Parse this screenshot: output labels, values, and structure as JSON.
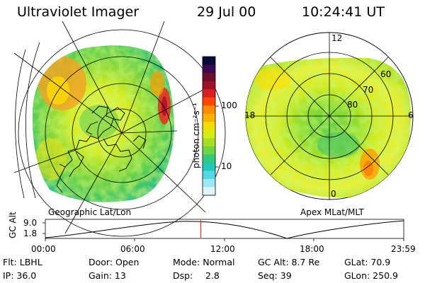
{
  "header": {
    "instrument": "Ultraviolet Imager",
    "date": "29 Jul 00",
    "time": "10:24:41 UT"
  },
  "left_panel": {
    "caption": "Geographic Lat/Lon"
  },
  "right_panel": {
    "caption": "Apex MLat/MLT",
    "mlt_labels": [
      "12",
      "18",
      "6",
      "0"
    ],
    "lat_labels": [
      "60",
      "70",
      "80"
    ]
  },
  "colorbar": {
    "unit_label": "photon cm⁻²s⁻¹",
    "tick_labels": [
      "100",
      "10"
    ],
    "colors": [
      "#0a0a3a",
      "#3b0a52",
      "#6a0f2a",
      "#a0122a",
      "#d81f22",
      "#ff4500",
      "#ff8c00",
      "#ffb000",
      "#f4dc00",
      "#d7ec14",
      "#a8de22",
      "#6fd442",
      "#34c87e",
      "#22c8b6",
      "#55d8e6",
      "#9ce8f2",
      "#e2f4f8"
    ]
  },
  "altitude_plot": {
    "ylabel": "GC Alt",
    "yticks": [
      "9.0",
      "1.8"
    ],
    "xticks": [
      "00:00",
      "06:00",
      "12:00",
      "18:00",
      "23:59"
    ],
    "current_time_marker_hours": 10.41
  },
  "info": {
    "filter": "Flt: LBHL",
    "door": "Door: Open",
    "mode": "Mode: Normal",
    "gc_alt": "GC Alt: 8.7 Re",
    "glat": "GLat:  70.9",
    "ip": "IP: 36.0",
    "gain": "Gain: 13",
    "dsp_label": "Dsp:",
    "dsp_value": "2.8",
    "seq": "Seq: 39",
    "glon": "GLon: 250.9"
  }
}
